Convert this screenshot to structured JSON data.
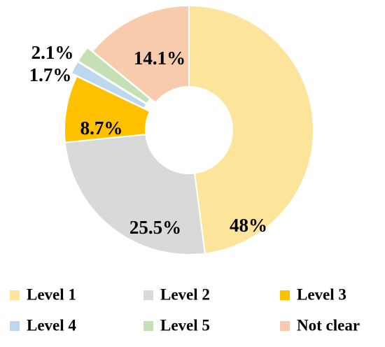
{
  "chart_data": {
    "type": "pie",
    "categories": [
      "Level 1",
      "Level 2",
      "Level 3",
      "Level 4",
      "Level 5",
      "Not clear"
    ],
    "values": [
      48,
      25.5,
      8.7,
      1.7,
      2.1,
      14.1
    ],
    "value_labels": [
      "48%",
      "25.5%",
      "8.7%",
      "1.7%",
      "2.1%",
      "14.1%"
    ],
    "colors": [
      "#fde49b",
      "#d9d9d9",
      "#ffc000",
      "#bdd7ee",
      "#c5e0b4",
      "#f8cbad"
    ],
    "donut": true
  }
}
